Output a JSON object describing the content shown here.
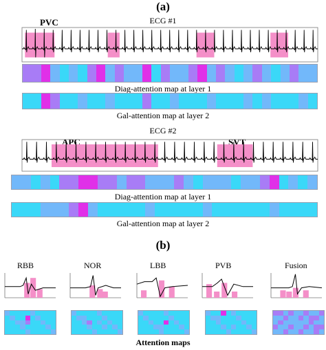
{
  "section_a": {
    "label": "(a)"
  },
  "ecg1": {
    "title": "ECG #1",
    "annotations": [
      "PVC"
    ],
    "diag_caption": "Diag-attention map at layer 1",
    "gal_caption": "Gal-attention map at layer 2"
  },
  "ecg2": {
    "title": "ECG #2",
    "annotations": [
      "APC",
      "SVT"
    ],
    "diag_caption": "Diag-attention map at layer 1",
    "gal_caption": "Gal-attention map at layer 2"
  },
  "section_b": {
    "label": "(b)",
    "classes": [
      "RBB",
      "NOR",
      "LBB",
      "PVB",
      "Fusion"
    ],
    "caption": "Attention maps"
  },
  "colors": {
    "cyan": "#3ad8f8",
    "light_blue": "#72b8fa",
    "violet": "#a87cf6",
    "magenta": "#e030e8",
    "highlight_pink": "#f48fc8",
    "trace": "#000000"
  }
}
